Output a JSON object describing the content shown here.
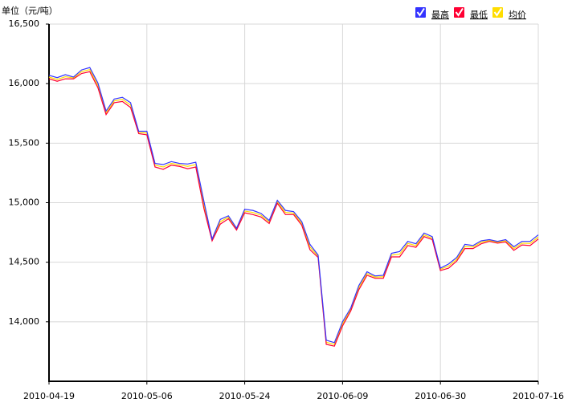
{
  "chart_data": {
    "type": "line",
    "y_label": "单位（元/吨）",
    "categories": [
      "2010-04-19",
      null,
      null,
      null,
      null,
      null,
      null,
      null,
      null,
      null,
      null,
      null,
      "2010-05-06",
      null,
      null,
      null,
      null,
      null,
      null,
      null,
      null,
      null,
      null,
      null,
      "2010-05-24",
      null,
      null,
      null,
      null,
      null,
      null,
      null,
      null,
      null,
      null,
      null,
      "2010-06-09",
      null,
      null,
      null,
      null,
      null,
      null,
      null,
      null,
      null,
      null,
      null,
      "2010-06-30",
      null,
      null,
      null,
      null,
      null,
      null,
      null,
      null,
      null,
      null,
      null,
      "2010-07-16"
    ],
    "series": [
      {
        "name": "最高",
        "color": "#3333ff",
        "values": [
          16070,
          16050,
          16075,
          16055,
          16115,
          16135,
          16005,
          15770,
          15870,
          15885,
          15840,
          15600,
          15600,
          15330,
          15320,
          15345,
          15330,
          15325,
          15340,
          15010,
          14695,
          14860,
          14890,
          14785,
          14945,
          14935,
          14910,
          14850,
          15020,
          14935,
          14925,
          14840,
          14650,
          14560,
          13845,
          13825,
          14000,
          14115,
          14305,
          14420,
          14385,
          14390,
          14575,
          14590,
          14675,
          14655,
          14745,
          14715,
          14450,
          14485,
          14540,
          14650,
          14640,
          14680,
          14690,
          14675,
          14690,
          14630,
          14675,
          14675,
          14730
        ]
      },
      {
        "name": "最低",
        "color": "#ff0033",
        "values": [
          16040,
          16020,
          16040,
          16040,
          16085,
          16100,
          15965,
          15740,
          15840,
          15850,
          15800,
          15580,
          15570,
          15300,
          15280,
          15315,
          15305,
          15285,
          15300,
          14950,
          14680,
          14820,
          14865,
          14770,
          14915,
          14900,
          14880,
          14825,
          14995,
          14900,
          14900,
          14810,
          14605,
          14540,
          13810,
          13795,
          13965,
          14090,
          14270,
          14390,
          14365,
          14365,
          14545,
          14545,
          14640,
          14625,
          14715,
          14690,
          14430,
          14450,
          14510,
          14615,
          14615,
          14655,
          14675,
          14660,
          14670,
          14600,
          14645,
          14640,
          14695
        ]
      },
      {
        "name": "均价",
        "color": "#ffdd00",
        "values": [
          16055,
          16035,
          16058,
          16048,
          16100,
          16118,
          15985,
          15755,
          15855,
          15868,
          15820,
          15590,
          15585,
          15315,
          15300,
          15330,
          15318,
          15305,
          15320,
          14980,
          14688,
          14840,
          14878,
          14778,
          14930,
          14918,
          14895,
          14838,
          15008,
          14918,
          14912,
          14825,
          14628,
          14550,
          13828,
          13810,
          13982,
          14102,
          14288,
          14405,
          14375,
          14378,
          14560,
          14568,
          14658,
          14640,
          14730,
          14702,
          14440,
          14468,
          14525,
          14632,
          14628,
          14668,
          14682,
          14668,
          14680,
          14615,
          14660,
          14658,
          14712
        ]
      }
    ],
    "ylim": [
      13500,
      16500
    ],
    "yticks": [
      {
        "value": 14000,
        "label": "14,000"
      },
      {
        "value": 14500,
        "label": "14,500"
      },
      {
        "value": 15000,
        "label": "15,000"
      },
      {
        "value": 15500,
        "label": "15,500"
      },
      {
        "value": 16000,
        "label": "16,000"
      },
      {
        "value": 16500,
        "label": "16,500"
      }
    ],
    "grid": true,
    "legend": "top-right"
  }
}
